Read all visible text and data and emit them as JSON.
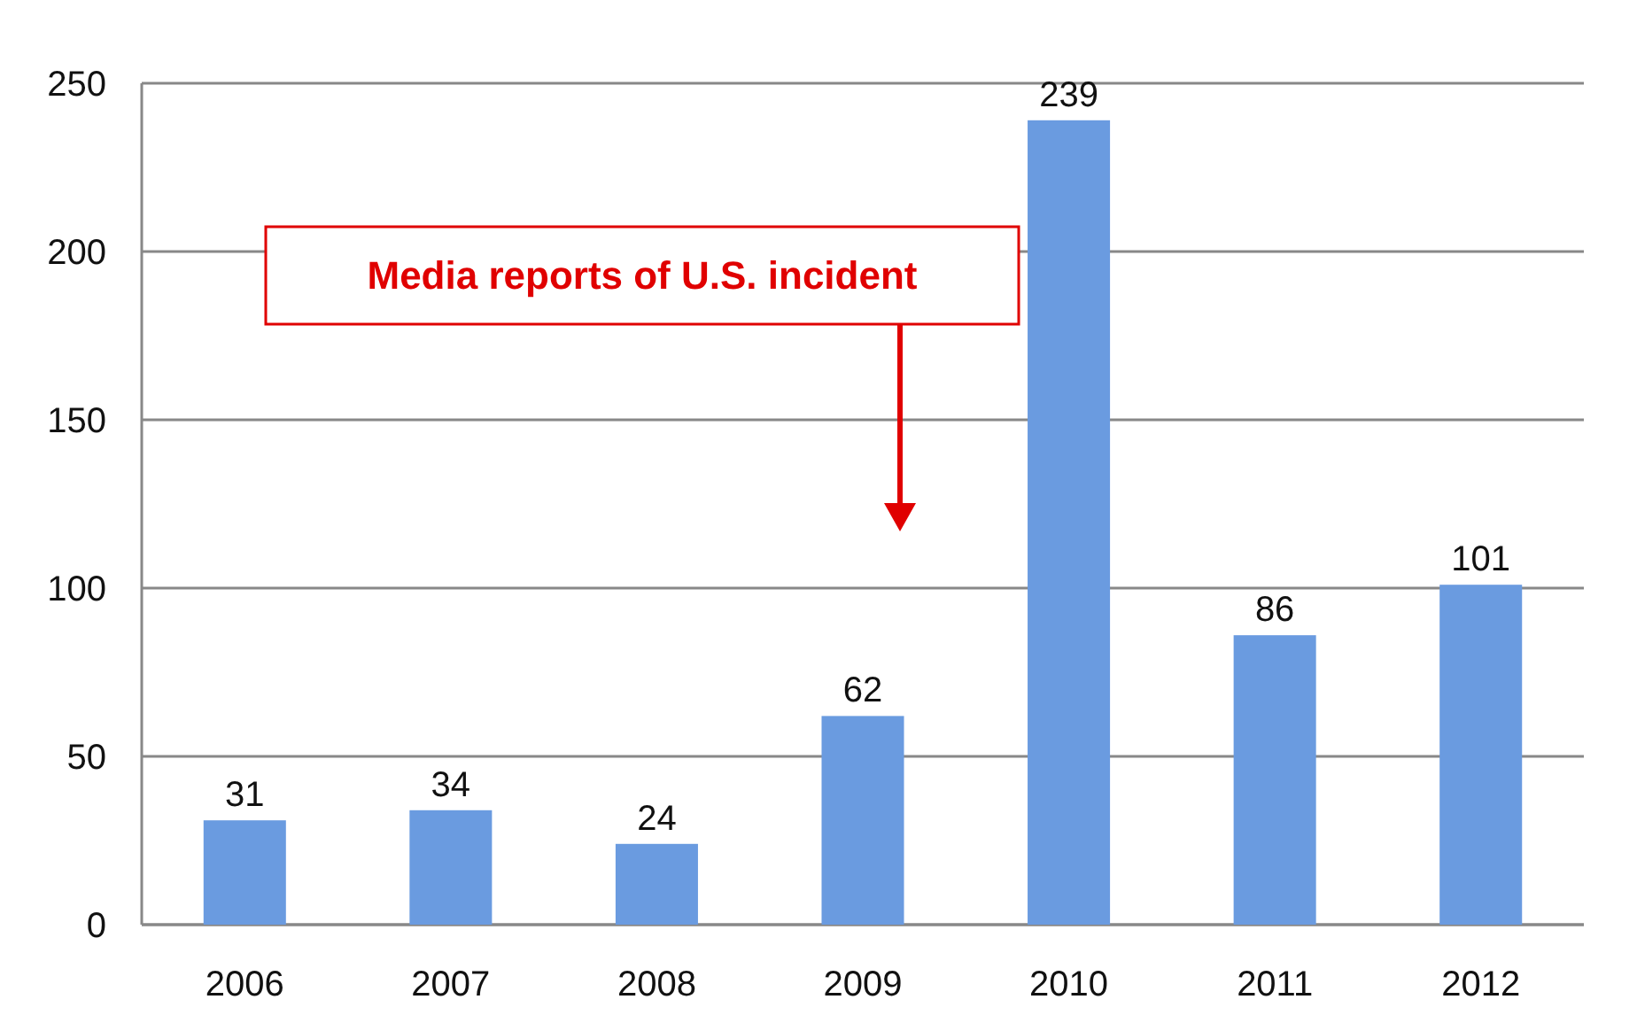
{
  "chart_data": {
    "type": "bar",
    "categories": [
      "2006",
      "2007",
      "2008",
      "2009",
      "2010",
      "2011",
      "2012"
    ],
    "values": [
      31,
      34,
      24,
      62,
      239,
      86,
      101
    ],
    "color": "#6a9be0",
    "ylim": [
      0,
      250
    ],
    "yticks": [
      0,
      50,
      100,
      150,
      200,
      250
    ],
    "grid": "y",
    "data_labels": true,
    "annotations": [
      "Media reports of U.S. incident"
    ]
  }
}
